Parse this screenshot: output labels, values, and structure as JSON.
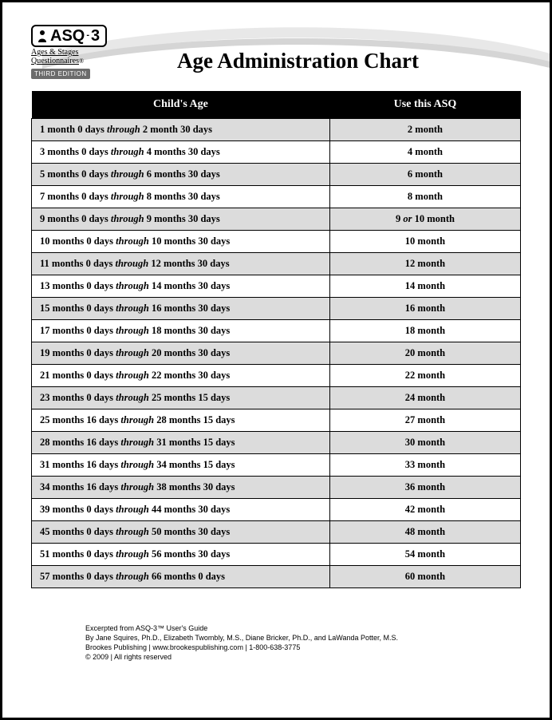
{
  "logo": {
    "brand_prefix": "ASQ",
    "brand_suffix": "3",
    "sub_line1": "Ages & Stages",
    "sub_line2": "Questionnaires",
    "edition": "THIRD EDITION"
  },
  "title": "Age Administration Chart",
  "table": {
    "header_age": "Child's Age",
    "header_asq": "Use this ASQ",
    "row_shade_color": "#dcdcdc",
    "row_plain_color": "#ffffff",
    "header_bg": "#000000",
    "header_fg": "#ffffff",
    "border_color": "#000000",
    "font_size_pt": 12.5,
    "rows": [
      {
        "age_pre": "1 month 0 days ",
        "age_mid": "through",
        "age_post": " 2 month 30 days",
        "asq": "2 month",
        "shade": true
      },
      {
        "age_pre": "3 months 0 days ",
        "age_mid": "through",
        "age_post": " 4 months 30 days",
        "asq": "4 month",
        "shade": false
      },
      {
        "age_pre": "5 months 0 days ",
        "age_mid": "through",
        "age_post": " 6 months 30 days",
        "asq": "6 month",
        "shade": true
      },
      {
        "age_pre": "7 months 0 days ",
        "age_mid": "through",
        "age_post": " 8 months 30 days",
        "asq": "8 month",
        "shade": false
      },
      {
        "age_pre": "9 months 0 days ",
        "age_mid": "through",
        "age_post": " 9 months 30 days",
        "asq_pre": "9 ",
        "asq_mid": "or",
        "asq_post": " 10 month",
        "shade": true
      },
      {
        "age_pre": "10 months 0 days  ",
        "age_mid": "through",
        "age_post": " 10 months 30 days",
        "asq": "10 month",
        "shade": false
      },
      {
        "age_pre": "11 months 0 days ",
        "age_mid": "through",
        "age_post": " 12 months 30 days",
        "asq": "12 month",
        "shade": true
      },
      {
        "age_pre": "13 months 0 days ",
        "age_mid": "through",
        "age_post": " 14 months 30 days",
        "asq": "14 month",
        "shade": false
      },
      {
        "age_pre": "15 months 0 days ",
        "age_mid": "through",
        "age_post": " 16 months 30 days",
        "asq": "16 month",
        "shade": true
      },
      {
        "age_pre": "17 months 0 days ",
        "age_mid": "through",
        "age_post": " 18 months 30 days",
        "asq": "18 month",
        "shade": false
      },
      {
        "age_pre": "19 months 0 days ",
        "age_mid": "through",
        "age_post": " 20 months 30 days",
        "asq": "20 month",
        "shade": true
      },
      {
        "age_pre": "21 months 0 days ",
        "age_mid": "through",
        "age_post": " 22 months 30 days",
        "asq": "22 month",
        "shade": false
      },
      {
        "age_pre": "23 months 0 days ",
        "age_mid": "through",
        "age_post": " 25 months 15 days",
        "asq": "24 month",
        "shade": true
      },
      {
        "age_pre": "25 months 16 days ",
        "age_mid": "through",
        "age_post": " 28 months 15 days",
        "asq": "27 month",
        "shade": false
      },
      {
        "age_pre": "28 months 16 days ",
        "age_mid": "through",
        "age_post": " 31 months 15 days",
        "asq": "30 month",
        "shade": true
      },
      {
        "age_pre": "31 months 16 days ",
        "age_mid": "through",
        "age_post": " 34 months 15 days",
        "asq": "33 month",
        "shade": false
      },
      {
        "age_pre": "34 months 16 days ",
        "age_mid": "through",
        "age_post": " 38 months 30 days",
        "asq": "36 month",
        "shade": true
      },
      {
        "age_pre": "39 months 0 days ",
        "age_mid": "through",
        "age_post": " 44 months 30 days",
        "asq": "42 month",
        "shade": false
      },
      {
        "age_pre": "45 months 0 days ",
        "age_mid": "through",
        "age_post": " 50 months 30 days",
        "asq": "48 month",
        "shade": true
      },
      {
        "age_pre": "51 months 0 days ",
        "age_mid": "through",
        "age_post": " 56 months 30 days",
        "asq": "54 month",
        "shade": false
      },
      {
        "age_pre": "57 months 0 days ",
        "age_mid": "through",
        "age_post": " 66 months 0 days",
        "asq": "60 month",
        "shade": true
      }
    ]
  },
  "footer": {
    "line1": "Excerpted from ASQ-3™ User's Guide",
    "line2": "By Jane Squires, Ph.D., Elizabeth Twombly, M.S., Diane Bricker, Ph.D., and LaWanda Potter, M.S.",
    "line3": "Brookes Publishing | www.brookespublishing.com | 1-800-638-3775",
    "line4": "© 2009 | All rights reserved"
  }
}
